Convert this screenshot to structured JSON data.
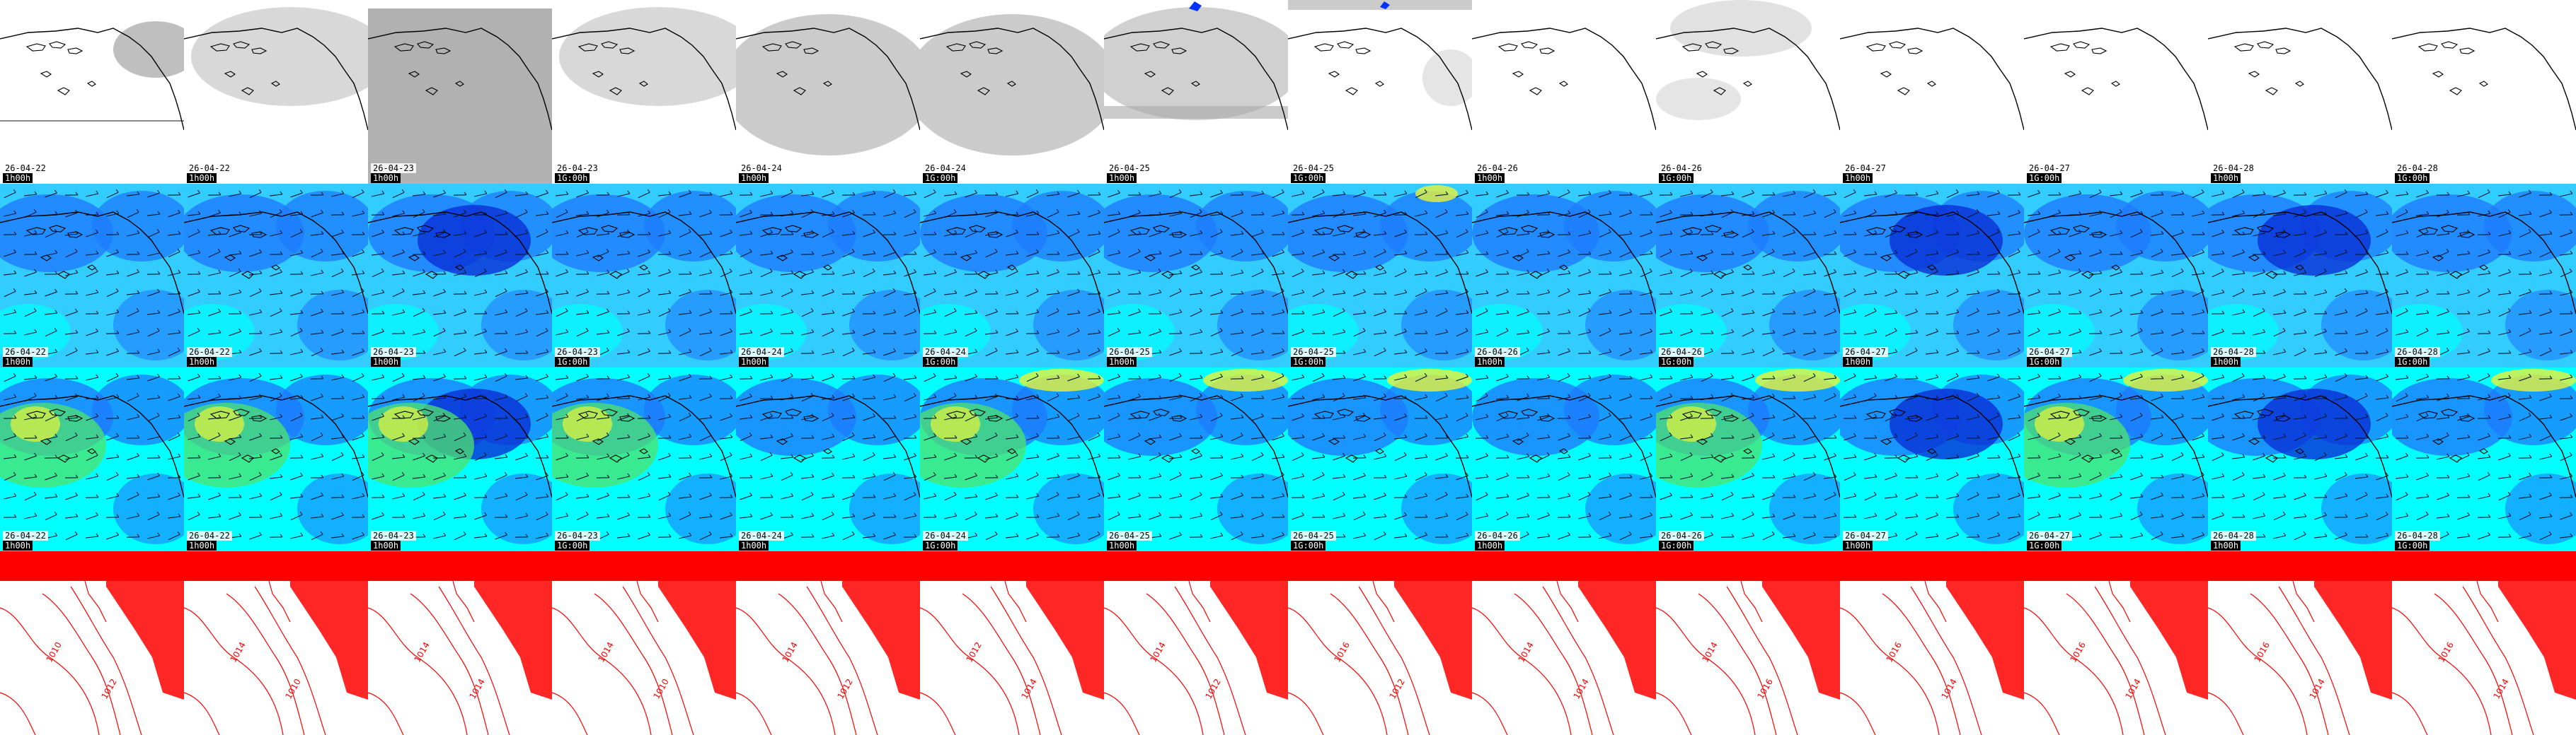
{
  "columns": [
    {
      "date": "26-04-22",
      "time": "1h00h",
      "pmsl_labels": [
        "1010",
        "1012"
      ]
    },
    {
      "date": "26-04-22",
      "time": "1h00h",
      "pmsl_labels": [
        "1014",
        "1010"
      ]
    },
    {
      "date": "26-04-23",
      "time": "1h00h",
      "pmsl_labels": [
        "1014",
        "1014"
      ]
    },
    {
      "date": "26-04-23",
      "time": "1G:00h",
      "pmsl_labels": [
        "1014",
        "1010"
      ]
    },
    {
      "date": "26-04-24",
      "time": "1h00h",
      "pmsl_labels": [
        "1014",
        "1012"
      ]
    },
    {
      "date": "26-04-24",
      "time": "1G:00h",
      "pmsl_labels": [
        "1012",
        "1014"
      ]
    },
    {
      "date": "26-04-25",
      "time": "1h00h",
      "pmsl_labels": [
        "1014",
        "1012"
      ]
    },
    {
      "date": "26-04-25",
      "time": "1G:00h",
      "pmsl_labels": [
        "1016",
        "1012"
      ]
    },
    {
      "date": "26-04-26",
      "time": "1h00h",
      "pmsl_labels": [
        "1014",
        "1014"
      ]
    },
    {
      "date": "26-04-26",
      "time": "1G:00h",
      "pmsl_labels": [
        "1014",
        "1016"
      ]
    },
    {
      "date": "26-04-27",
      "time": "1h00h",
      "pmsl_labels": [
        "1016",
        "1014"
      ]
    },
    {
      "date": "26-04-27",
      "time": "1G:00h",
      "pmsl_labels": [
        "1016",
        "1014"
      ]
    },
    {
      "date": "26-04-28",
      "time": "1h00h",
      "pmsl_labels": [
        "1016",
        "1014"
      ]
    },
    {
      "date": "26-04-28",
      "time": "1G:00h",
      "pmsl_labels": [
        "1016",
        "1014"
      ]
    }
  ],
  "rows": [
    {
      "name": "precipitation-cloud-row",
      "kind": "cloud"
    },
    {
      "name": "wind-speed-row",
      "kind": "wind"
    },
    {
      "name": "wind-gust-row",
      "kind": "gust"
    },
    {
      "name": "pressure-isobar-row",
      "kind": "pressure"
    }
  ],
  "colors": {
    "cloud_gray": "#a9a9a9",
    "wind_cyan": "#00ffff",
    "wind_light_blue": "#33ccff",
    "wind_mid_blue": "#1e7bff",
    "wind_dark_blue": "#0a2fd6",
    "gust_green": "#4de36b",
    "gust_yellow": "#e8f23a",
    "isobar_red": "#ff0000",
    "coastline": "#000000",
    "precip_blue": "#0033ff"
  }
}
